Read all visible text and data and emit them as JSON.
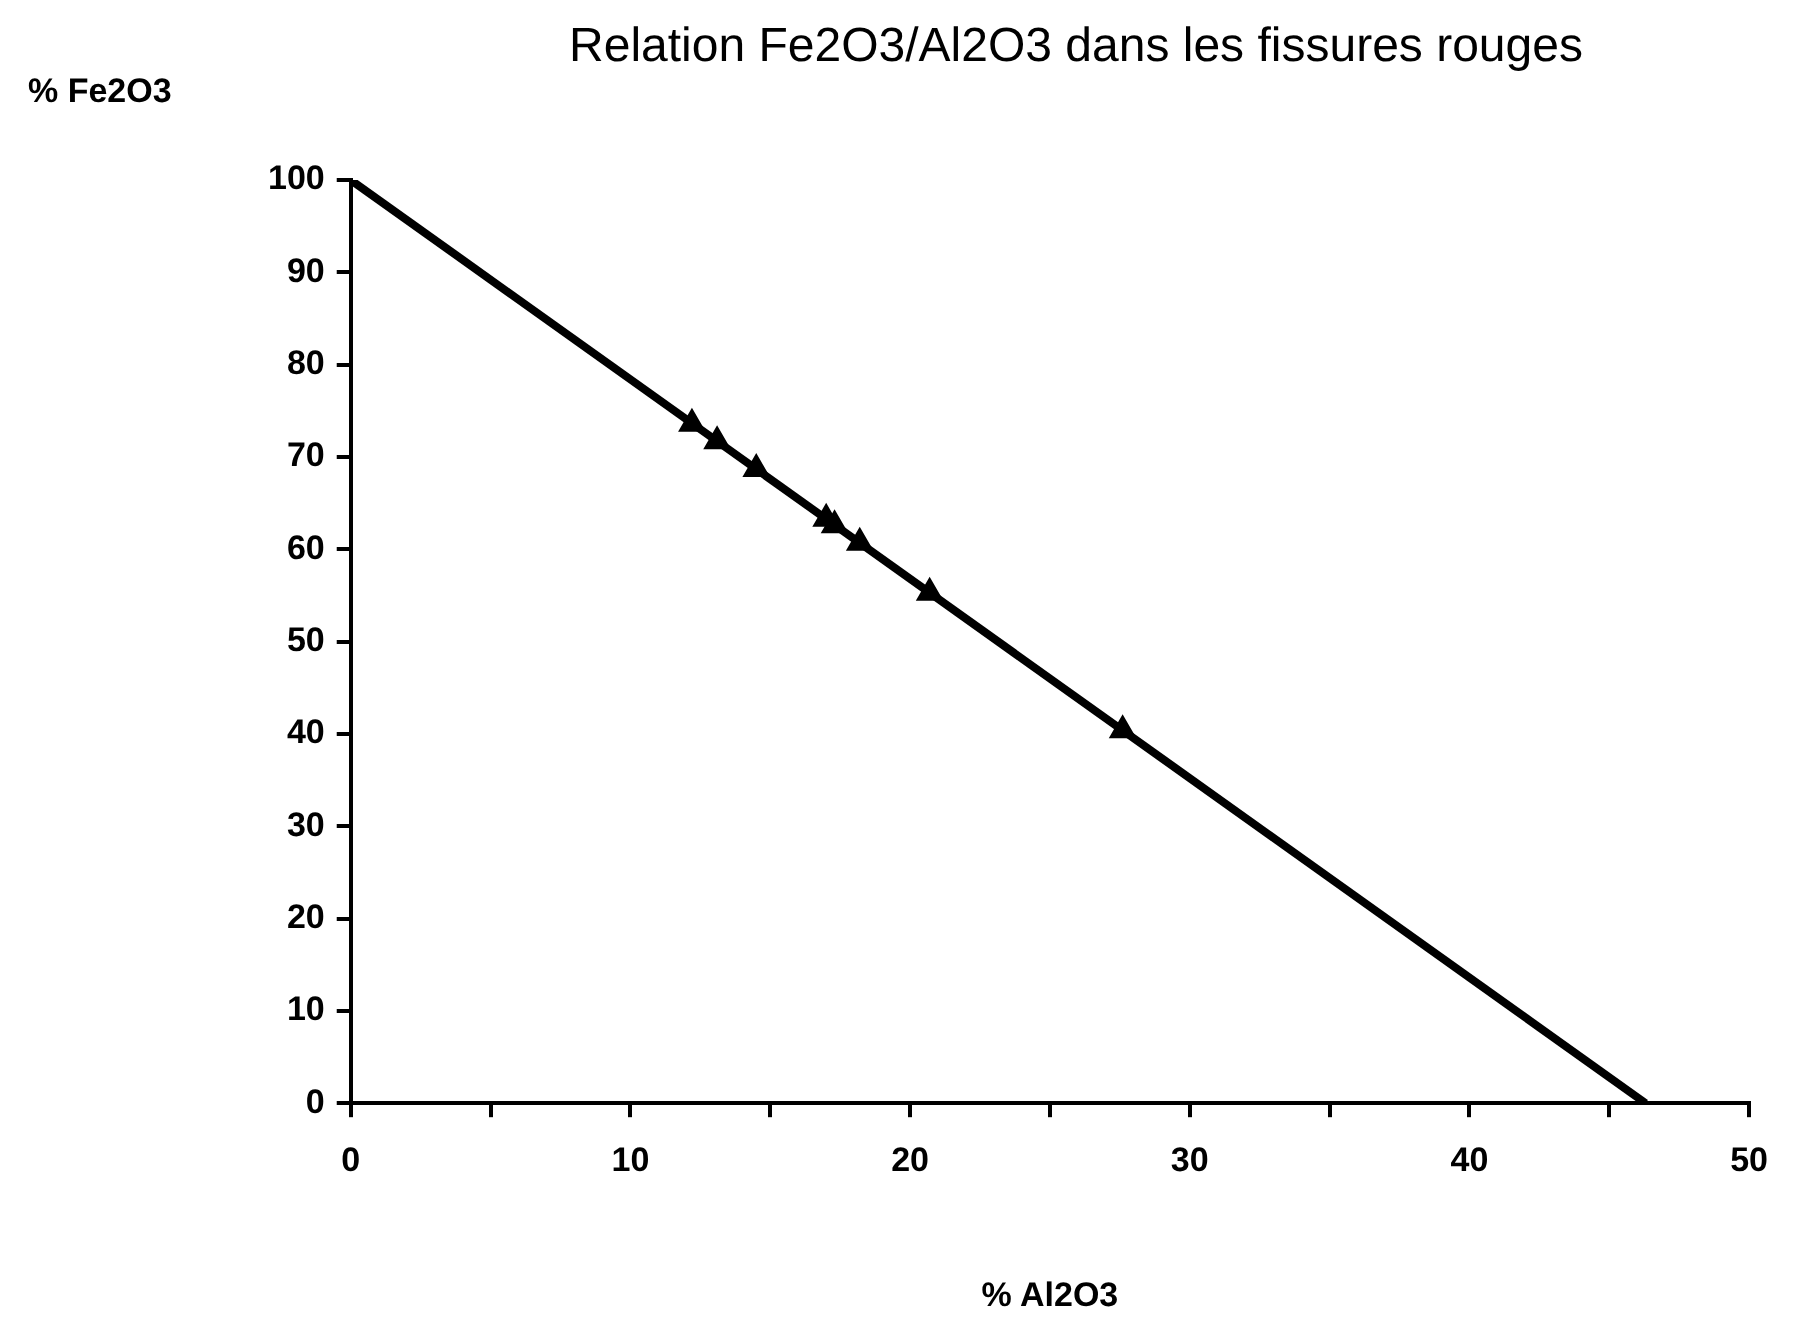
{
  "chart_data": {
    "type": "scatter",
    "title": "Relation Fe2O3/Al2O3 dans les fissures rouges",
    "xlabel": "% Al2O3",
    "ylabel": "% Fe2O3",
    "series": [
      {
        "type": "scatter",
        "color": "#000000",
        "marker": "triangle",
        "x": [
          12.2,
          13.1,
          14.5,
          17.0,
          17.3,
          18.2,
          20.7,
          27.6
        ],
        "values": [
          73.6,
          71.7,
          68.7,
          63.3,
          62.6,
          60.7,
          55.3,
          40.4
        ]
      },
      {
        "type": "line",
        "color": "#000000",
        "marker": "none",
        "x": [
          0,
          46.3
        ],
        "values": [
          100,
          0
        ]
      }
    ],
    "xlim": [
      0,
      50
    ],
    "ylim": [
      0,
      100
    ],
    "xticks": [
      0,
      {
        "value": 5,
        "label": null
      },
      10,
      {
        "value": 15,
        "label": null
      },
      20,
      {
        "value": 25,
        "label": null
      },
      30,
      {
        "value": 35,
        "label": null
      },
      40,
      {
        "value": 45,
        "label": null
      },
      50
    ],
    "yticks": [
      0,
      10,
      20,
      30,
      40,
      50,
      60,
      70,
      80,
      90,
      100
    ],
    "grid": false,
    "legend": false
  }
}
